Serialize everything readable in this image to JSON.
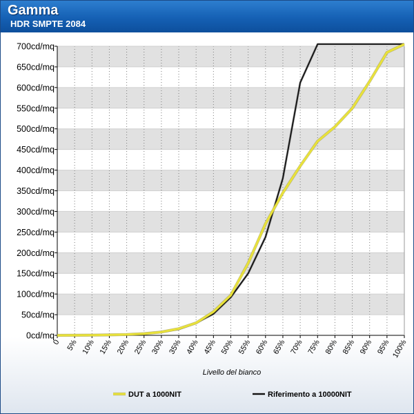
{
  "header": {
    "title": "Gamma",
    "subtitle": "HDR SMPTE 2084"
  },
  "chart_data": {
    "type": "line",
    "title": "Gamma",
    "subtitle": "HDR SMPTE 2084",
    "xlabel": "Livello del bianco",
    "ylabel": "",
    "x": [
      0,
      5,
      10,
      15,
      20,
      25,
      30,
      35,
      40,
      45,
      50,
      55,
      60,
      65,
      70,
      75,
      80,
      85,
      90,
      95,
      100
    ],
    "x_tick_labels": [
      "0",
      "5%",
      "10%",
      "15%",
      "20%",
      "25%",
      "30%",
      "35%",
      "40%",
      "45%",
      "50%",
      "55%",
      "60%",
      "65%",
      "70%",
      "75%",
      "80%",
      "85%",
      "90%",
      "95%",
      "100%"
    ],
    "y_ticks": [
      0,
      50,
      100,
      150,
      200,
      250,
      300,
      350,
      400,
      450,
      500,
      550,
      600,
      650,
      700
    ],
    "y_tick_labels": [
      "0cd/mq",
      "50cd/mq",
      "100cd/mq",
      "150cd/mq",
      "200cd/mq",
      "250cd/mq",
      "300cd/mq",
      "350cd/mq",
      "400cd/mq",
      "450cd/mq",
      "500cd/mq",
      "550cd/mq",
      "600cd/mq",
      "650cd/mq",
      "700cd/mq"
    ],
    "ylim": [
      0,
      700
    ],
    "xlim": [
      0,
      100
    ],
    "grid": true,
    "legend_position": "bottom",
    "series": [
      {
        "name": "DUT a 1000NIT",
        "color": "#e9e23a",
        "values": [
          0,
          0.2,
          0.5,
          1,
          2,
          4,
          8,
          16,
          30,
          57,
          97,
          175,
          270,
          345,
          410,
          470,
          505,
          550,
          615,
          685,
          705
        ]
      },
      {
        "name": "Riferimento a 10000NIT",
        "color": "#111111",
        "values": [
          0,
          0.2,
          0.5,
          1,
          2,
          4,
          8,
          15,
          30,
          52,
          92,
          150,
          238,
          380,
          612,
          705,
          705,
          705,
          705,
          705,
          705
        ]
      }
    ]
  }
}
